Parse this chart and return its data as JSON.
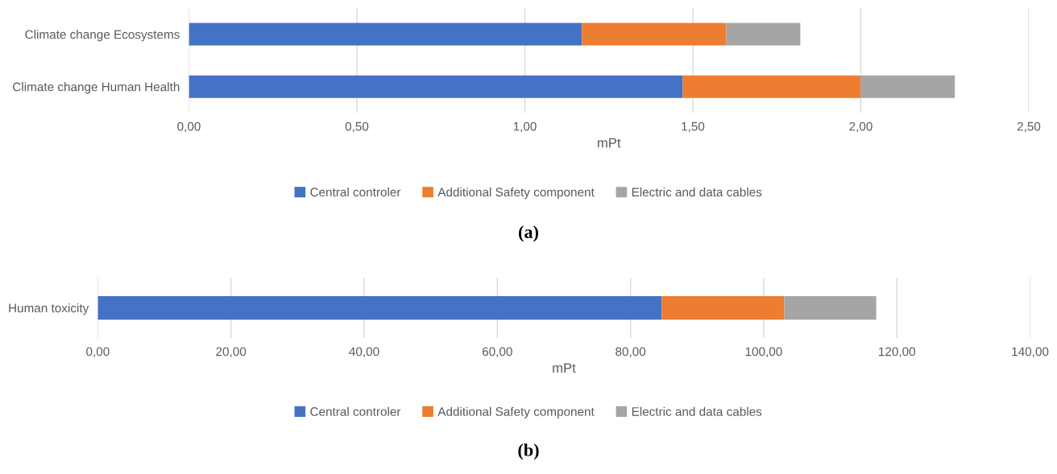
{
  "chart_data": [
    {
      "type": "bar",
      "orientation": "horizontal",
      "stacked": true,
      "categories": [
        "Climate change Ecosystems",
        "Climate change Human Health"
      ],
      "series": [
        {
          "name": "Central controler",
          "color": "#4472c4",
          "values": [
            1.17,
            1.47
          ]
        },
        {
          "name": "Additional Safety component",
          "color": "#ed7d31",
          "values": [
            0.43,
            0.53
          ]
        },
        {
          "name": "Electric and data cables",
          "color": "#a5a5a5",
          "values": [
            0.22,
            0.28
          ]
        }
      ],
      "xlabel": "mPt",
      "xlim": [
        0,
        2.5
      ],
      "xticks": [
        {
          "value": 0,
          "label": "0,00"
        },
        {
          "value": 0.5,
          "label": "0,50"
        },
        {
          "value": 1,
          "label": "1,00"
        },
        {
          "value": 1.5,
          "label": "1,50"
        },
        {
          "value": 2,
          "label": "2,00"
        },
        {
          "value": 2.5,
          "label": "2,50"
        }
      ],
      "grid": "x",
      "legend": "bottom",
      "annotations": [
        "(a)"
      ]
    },
    {
      "type": "bar",
      "orientation": "horizontal",
      "stacked": true,
      "categories": [
        "Human toxicity"
      ],
      "series": [
        {
          "name": "Central controler",
          "color": "#4472c4",
          "values": [
            84.7
          ]
        },
        {
          "name": "Additional Safety component",
          "color": "#ed7d31",
          "values": [
            18.4
          ]
        },
        {
          "name": "Electric and data cables",
          "color": "#a5a5a5",
          "values": [
            13.8
          ]
        }
      ],
      "xlabel": "mPt",
      "xlim": [
        0,
        140
      ],
      "xticks": [
        {
          "value": 0,
          "label": "0,00"
        },
        {
          "value": 20,
          "label": "20,00"
        },
        {
          "value": 40,
          "label": "40,00"
        },
        {
          "value": 60,
          "label": "60,00"
        },
        {
          "value": 80,
          "label": "80,00"
        },
        {
          "value": 100,
          "label": "100,00"
        },
        {
          "value": 120,
          "label": "120,00"
        },
        {
          "value": 140,
          "label": "140,00"
        }
      ],
      "grid": "x",
      "legend": "bottom",
      "annotations": [
        "(b)"
      ]
    }
  ]
}
